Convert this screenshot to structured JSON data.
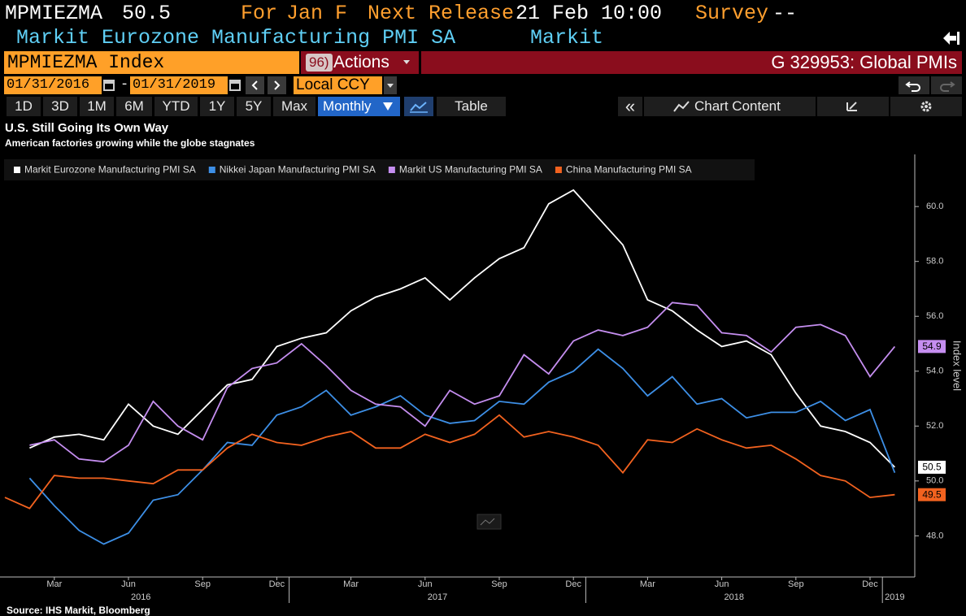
{
  "header": {
    "ticker": "MPMIEZMA",
    "value": "50.5",
    "period_label": "For",
    "period": "Jan F",
    "release_label": "Next Release",
    "release": "21 Feb 10:00",
    "survey_label": "Survey",
    "survey": "--",
    "description": "Markit Eurozone Manufacturing PMI SA",
    "source": "Markit"
  },
  "toolbar": {
    "security": "MPMIEZMA Index",
    "actions_number": "96)",
    "actions": "Actions",
    "group": "G 329953: Global PMIs"
  },
  "dates": {
    "start": "01/31/2016",
    "separator": "-",
    "end": "01/31/2019",
    "currency": "Local CCY"
  },
  "periods": [
    "1D",
    "3D",
    "1M",
    "6M",
    "YTD",
    "1Y",
    "5Y",
    "Max"
  ],
  "frequency": "Monthly",
  "table": "Table",
  "collapse": "«",
  "chart_content": "Chart Content",
  "chart_data": {
    "type": "line",
    "title": "U.S. Still Going Its Own Way",
    "subtitle": "American factories growing while the globe stagnates",
    "y_label": "Index level",
    "source": "Source: IHS Markit, Bloomberg",
    "categories": [
      null,
      null,
      "Mar",
      null,
      null,
      "Jun",
      null,
      null,
      "Sep",
      null,
      null,
      "Dec",
      null,
      null,
      "Mar",
      null,
      null,
      "Jun",
      null,
      null,
      "Sep",
      null,
      null,
      "Dec",
      null,
      null,
      "Mar",
      null,
      null,
      "Jun",
      null,
      null,
      "Sep",
      null,
      null,
      "Dec",
      null
    ],
    "years": [
      {
        "label": "2016",
        "start": 0,
        "end": 11
      },
      {
        "label": "2017",
        "start": 12,
        "end": 23
      },
      {
        "label": "2018",
        "start": 24,
        "end": 35
      },
      {
        "label": "2019",
        "start": 36,
        "end": 36
      }
    ],
    "series": [
      {
        "name": "Markit Eurozone Manufacturing PMI SA",
        "color": "#ffffff",
        "last_label": "50.5",
        "values": [
          null,
          51.2,
          51.6,
          51.7,
          51.5,
          52.8,
          52.0,
          51.7,
          52.6,
          53.5,
          53.7,
          54.9,
          55.2,
          55.4,
          56.2,
          56.7,
          57.0,
          57.4,
          56.6,
          57.4,
          58.1,
          58.5,
          60.1,
          60.6,
          59.6,
          58.6,
          56.6,
          56.2,
          55.5,
          54.9,
          55.1,
          54.6,
          53.2,
          52.0,
          51.8,
          51.4,
          50.5
        ]
      },
      {
        "name": "Nikkei Japan Manufacturing PMI SA",
        "color": "#3d8fe6",
        "values": [
          null,
          50.1,
          49.1,
          48.2,
          47.7,
          48.1,
          49.3,
          49.5,
          50.4,
          51.4,
          51.3,
          52.4,
          52.7,
          53.3,
          52.4,
          52.7,
          53.1,
          52.4,
          52.1,
          52.2,
          52.9,
          52.8,
          53.6,
          54.0,
          54.8,
          54.1,
          53.1,
          53.8,
          52.8,
          53.0,
          52.3,
          52.5,
          52.5,
          52.9,
          52.2,
          52.6,
          50.3
        ]
      },
      {
        "name": "Markit US Manufacturing PMI SA",
        "color": "#c58ef0",
        "last_label": "54.9",
        "values": [
          null,
          51.3,
          51.5,
          50.8,
          50.7,
          51.3,
          52.9,
          52.0,
          51.5,
          53.4,
          54.1,
          54.3,
          55.0,
          54.2,
          53.3,
          52.8,
          52.7,
          52.0,
          53.3,
          52.8,
          53.1,
          54.6,
          53.9,
          55.1,
          55.5,
          55.3,
          55.6,
          56.5,
          56.4,
          55.4,
          55.3,
          54.7,
          55.6,
          55.7,
          55.3,
          53.8,
          54.9
        ]
      },
      {
        "name": "China Manufacturing PMI SA",
        "color": "#f2621f",
        "last_label": "49.5",
        "values": [
          49.4,
          49.0,
          50.2,
          50.1,
          50.1,
          50.0,
          49.9,
          50.4,
          50.4,
          51.2,
          51.7,
          51.4,
          51.3,
          51.6,
          51.8,
          51.2,
          51.2,
          51.7,
          51.4,
          51.7,
          52.4,
          51.6,
          51.8,
          51.6,
          51.3,
          50.3,
          51.5,
          51.4,
          51.9,
          51.5,
          51.2,
          51.3,
          50.8,
          50.2,
          50.0,
          49.4,
          49.5
        ]
      }
    ],
    "ylim": [
      46.5,
      61.9
    ],
    "yticks": [
      {
        "value": 48,
        "label": "48.0"
      },
      {
        "value": 50,
        "label": "50.0"
      },
      {
        "value": 52,
        "label": "52.0"
      },
      {
        "value": 54,
        "label": "54.0"
      },
      {
        "value": 56,
        "label": "56.0"
      },
      {
        "value": 58,
        "label": "58.0"
      },
      {
        "value": 60,
        "label": "60.0"
      }
    ],
    "grid": false,
    "legend": "top-left"
  }
}
